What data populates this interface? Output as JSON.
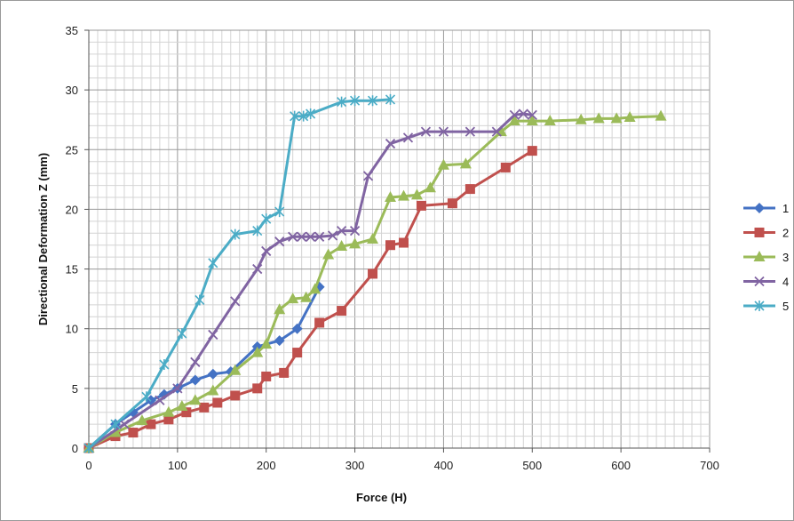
{
  "chart_data": {
    "type": "line",
    "title": "",
    "xlabel": "Force (H)",
    "ylabel": "Directional Deformation Z (mm)",
    "xlim": [
      0,
      700
    ],
    "ylim": [
      0,
      35
    ],
    "x_ticks": [
      0,
      100,
      200,
      300,
      400,
      500,
      600,
      700
    ],
    "y_ticks": [
      0,
      5,
      10,
      15,
      20,
      25,
      30,
      35
    ],
    "grid": true,
    "legend_position": "right",
    "series": [
      {
        "name": "1",
        "color": "#4472C4",
        "marker": "diamond",
        "x": [
          0,
          30,
          50,
          70,
          85,
          100,
          120,
          140,
          160,
          190,
          215,
          235,
          260
        ],
        "y": [
          0,
          2,
          3,
          4,
          4.5,
          5,
          5.7,
          6.2,
          6.4,
          8.5,
          9,
          10,
          13.5
        ]
      },
      {
        "name": "2",
        "color": "#C0504D",
        "marker": "square",
        "x": [
          0,
          30,
          50,
          70,
          90,
          110,
          130,
          145,
          165,
          190,
          200,
          220,
          235,
          260,
          285,
          320,
          340,
          355,
          375,
          410,
          430,
          470,
          500
        ],
        "y": [
          0,
          1,
          1.3,
          2,
          2.4,
          3,
          3.4,
          3.8,
          4.4,
          5,
          6,
          6.3,
          8,
          10.5,
          11.5,
          14.6,
          17,
          17.2,
          20.3,
          20.5,
          21.7,
          23.5,
          24.9
        ]
      },
      {
        "name": "3",
        "color": "#9BBB59",
        "marker": "triangle",
        "x": [
          0,
          30,
          60,
          90,
          105,
          120,
          140,
          165,
          190,
          200,
          215,
          230,
          245,
          255,
          270,
          285,
          300,
          320,
          340,
          355,
          370,
          385,
          400,
          425,
          465,
          480,
          500,
          520,
          555,
          575,
          595,
          610,
          645
        ],
        "y": [
          0,
          1.3,
          2.3,
          3,
          3.5,
          4,
          4.8,
          6.5,
          8,
          8.7,
          11.6,
          12.5,
          12.6,
          13.3,
          16.2,
          16.9,
          17.1,
          17.5,
          21,
          21.1,
          21.2,
          21.8,
          23.7,
          23.8,
          26.5,
          27.4,
          27.4,
          27.4,
          27.5,
          27.6,
          27.6,
          27.7,
          27.8
        ]
      },
      {
        "name": "4",
        "color": "#8064A2",
        "marker": "x",
        "x": [
          0,
          40,
          80,
          100,
          120,
          140,
          165,
          190,
          200,
          215,
          230,
          240,
          250,
          260,
          275,
          285,
          300,
          315,
          340,
          360,
          380,
          400,
          430,
          460,
          480,
          490,
          500
        ],
        "y": [
          0,
          2,
          4,
          5,
          7.2,
          9.5,
          12.3,
          15,
          16.5,
          17.3,
          17.7,
          17.7,
          17.7,
          17.7,
          17.8,
          18.2,
          18.2,
          22.8,
          25.5,
          26,
          26.5,
          26.5,
          26.5,
          26.5,
          27.9,
          28,
          27.9
        ]
      },
      {
        "name": "5",
        "color": "#4BACC6",
        "marker": "star",
        "x": [
          0,
          30,
          65,
          85,
          105,
          125,
          140,
          165,
          190,
          200,
          215,
          232,
          242,
          250,
          285,
          300,
          320,
          340
        ],
        "y": [
          0,
          2,
          4.3,
          7,
          9.6,
          12.4,
          15.5,
          17.9,
          18.2,
          19.2,
          19.8,
          27.8,
          27.8,
          28,
          29,
          29.1,
          29.1,
          29.2
        ]
      }
    ]
  }
}
